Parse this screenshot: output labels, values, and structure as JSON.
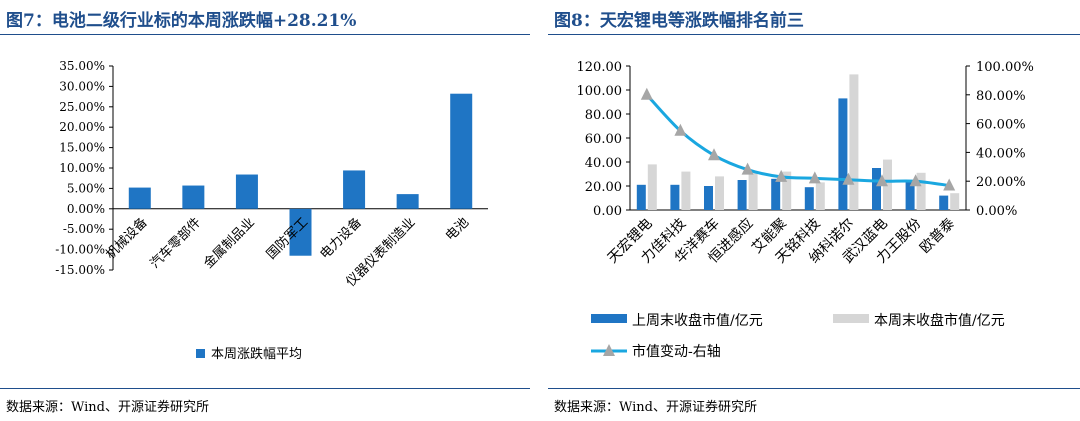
{
  "figures": [
    {
      "title": "图7：电池二级行业标的本周涨跌幅+28.21%",
      "source": "数据来源：Wind、开源证券研究所",
      "chart_data": {
        "type": "bar",
        "categories": [
          "机械设备",
          "汽车零部件",
          "金属制品业",
          "国防军工",
          "电力设备",
          "仪器仪表制造业",
          "电池"
        ],
        "series": [
          {
            "name": "本周涨跌幅平均",
            "values": [
              5.2,
              5.7,
              8.4,
              -11.5,
              9.4,
              3.6,
              28.21
            ],
            "color": "#1f75c4"
          }
        ],
        "ylim": [
          -15,
          35
        ],
        "yticks": [
          -15,
          -10,
          -5,
          0,
          5,
          10,
          15,
          20,
          25,
          30,
          35
        ],
        "ytick_labels": [
          "-15.00%",
          "-10.00%",
          "-5.00%",
          "0.00%",
          "5.00%",
          "10.00%",
          "15.00%",
          "20.00%",
          "25.00%",
          "30.00%",
          "35.00%"
        ],
        "legend": "bottom",
        "grid": false
      }
    },
    {
      "title": "图8：天宏锂电等涨跌幅排名前三",
      "source": "数据来源：Wind、开源证券研究所",
      "chart_data": {
        "type": "bar",
        "categories": [
          "天宏锂电",
          "力佳科技",
          "华洋赛车",
          "恒进感应",
          "艾能聚",
          "天铭科技",
          "纳科诺尔",
          "武汉蓝电",
          "力王股份",
          "欧普泰"
        ],
        "series": [
          {
            "name": "上周末收盘市值/亿元",
            "type": "bar",
            "axis": "left",
            "color": "#1f75c4",
            "values": [
              21,
              21,
              20,
              25,
              26,
              19,
              93,
              35,
              23,
              12
            ]
          },
          {
            "name": "本周末收盘市值/亿元",
            "type": "bar",
            "axis": "left",
            "color": "#d6d6d6",
            "values": [
              38,
              32,
              28,
              32,
              32,
              23,
              113,
              42,
              31,
              14
            ]
          },
          {
            "name": "市值变动-右轴",
            "type": "line",
            "axis": "right",
            "color": "#1aa7e0",
            "marker": "triangle",
            "marker_color": "#a6a6a6",
            "values": [
              80,
              55,
              38,
              28,
              23,
              22,
              21,
              20,
              20,
              17
            ]
          }
        ],
        "ylim": [
          0,
          120
        ],
        "yticks": [
          0,
          20,
          40,
          60,
          80,
          100,
          120
        ],
        "ytick_labels": [
          "0.00",
          "20.00",
          "40.00",
          "60.00",
          "80.00",
          "100.00",
          "120.00"
        ],
        "y2lim": [
          0,
          100
        ],
        "y2ticks": [
          0,
          20,
          40,
          60,
          80,
          100
        ],
        "y2tick_labels": [
          "0.00%",
          "20.00%",
          "40.00%",
          "60.00%",
          "80.00%",
          "100.00%"
        ],
        "legend": "bottom",
        "grid": false
      }
    }
  ]
}
